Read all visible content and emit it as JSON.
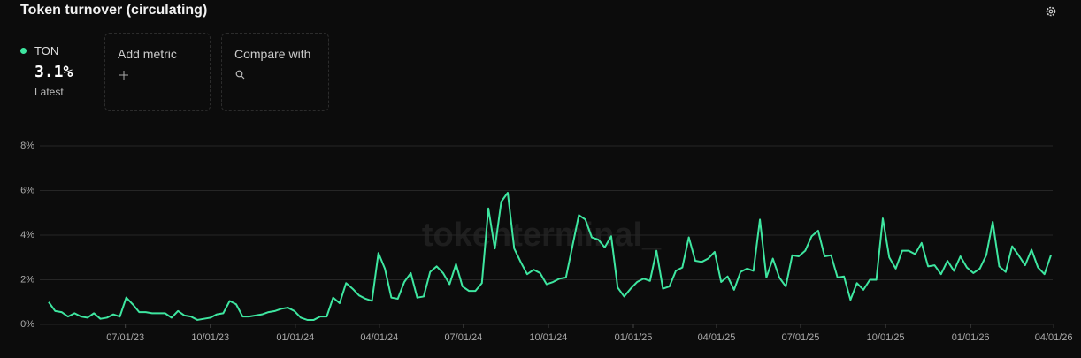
{
  "chart_data": {
    "type": "line",
    "title": "Token turnover (circulating)",
    "latest": {
      "label": "3.1%",
      "caption": "Latest"
    },
    "controls": [
      "Add metric",
      "Compare with"
    ],
    "watermark": "tokenterminal_",
    "x": [
      "2023-04-09",
      "2023-04-16",
      "2023-04-23",
      "2023-04-30",
      "2023-05-07",
      "2023-05-14",
      "2023-05-21",
      "2023-05-28",
      "2023-06-04",
      "2023-06-11",
      "2023-06-18",
      "2023-06-25",
      "2023-07-02",
      "2023-07-09",
      "2023-07-16",
      "2023-07-23",
      "2023-07-30",
      "2023-08-06",
      "2023-08-13",
      "2023-08-20",
      "2023-08-27",
      "2023-09-03",
      "2023-09-10",
      "2023-09-17",
      "2023-09-24",
      "2023-10-01",
      "2023-10-08",
      "2023-10-15",
      "2023-10-22",
      "2023-10-29",
      "2023-11-05",
      "2023-11-12",
      "2023-11-19",
      "2023-11-26",
      "2023-12-03",
      "2023-12-10",
      "2023-12-17",
      "2023-12-24",
      "2023-12-31",
      "2024-01-07",
      "2024-01-14",
      "2024-01-21",
      "2024-01-28",
      "2024-02-04",
      "2024-02-11",
      "2024-02-18",
      "2024-02-25",
      "2024-03-03",
      "2024-03-10",
      "2024-03-17",
      "2024-03-24",
      "2024-03-31",
      "2024-04-07",
      "2024-04-14",
      "2024-04-21",
      "2024-04-28",
      "2024-05-05",
      "2024-05-12",
      "2024-05-19",
      "2024-05-26",
      "2024-06-02",
      "2024-06-09",
      "2024-06-16",
      "2024-06-23",
      "2024-06-30",
      "2024-07-07",
      "2024-07-14",
      "2024-07-21",
      "2024-07-28",
      "2024-08-04",
      "2024-08-11",
      "2024-08-18",
      "2024-08-25",
      "2024-09-01",
      "2024-09-08",
      "2024-09-15",
      "2024-09-22",
      "2024-09-29",
      "2024-10-06",
      "2024-10-13",
      "2024-10-20",
      "2024-10-27",
      "2024-11-03",
      "2024-11-10",
      "2024-11-17",
      "2024-11-24",
      "2024-12-01",
      "2024-12-08",
      "2024-12-15",
      "2024-12-22",
      "2024-12-29",
      "2025-01-05",
      "2025-01-12",
      "2025-01-19",
      "2025-01-26",
      "2025-02-02",
      "2025-02-09",
      "2025-02-16",
      "2025-02-23",
      "2025-03-02",
      "2025-03-09",
      "2025-03-16",
      "2025-03-23",
      "2025-03-30",
      "2025-04-06",
      "2025-04-13",
      "2025-04-20",
      "2025-04-27",
      "2025-05-04",
      "2025-05-11",
      "2025-05-18",
      "2025-05-25",
      "2025-06-01",
      "2025-06-08",
      "2025-06-15",
      "2025-06-22",
      "2025-06-29",
      "2025-07-06",
      "2025-07-13",
      "2025-07-20",
      "2025-07-27",
      "2025-08-03",
      "2025-08-10",
      "2025-08-17",
      "2025-08-24",
      "2025-08-31",
      "2025-09-07",
      "2025-09-14",
      "2025-09-21",
      "2025-09-28",
      "2025-10-05",
      "2025-10-12",
      "2025-10-19",
      "2025-10-26",
      "2025-11-02",
      "2025-11-09",
      "2025-11-16",
      "2025-11-23",
      "2025-11-30",
      "2025-12-07",
      "2025-12-14",
      "2025-12-21",
      "2025-12-28",
      "2026-01-04",
      "2026-01-11",
      "2026-01-18",
      "2026-01-25",
      "2026-02-01",
      "2026-02-08",
      "2026-02-15",
      "2026-02-22",
      "2026-03-01",
      "2026-03-08",
      "2026-03-15",
      "2026-03-22",
      "2026-03-29"
    ],
    "series": [
      {
        "name": "TON",
        "color": "#3ee6a0",
        "values": [
          1.0,
          0.6,
          0.55,
          0.35,
          0.5,
          0.35,
          0.3,
          0.5,
          0.25,
          0.3,
          0.45,
          0.35,
          1.2,
          0.9,
          0.55,
          0.55,
          0.5,
          0.5,
          0.5,
          0.3,
          0.6,
          0.4,
          0.35,
          0.2,
          0.25,
          0.3,
          0.45,
          0.5,
          1.05,
          0.9,
          0.35,
          0.35,
          0.4,
          0.45,
          0.55,
          0.6,
          0.7,
          0.75,
          0.6,
          0.3,
          0.2,
          0.2,
          0.35,
          0.35,
          1.2,
          0.95,
          1.85,
          1.6,
          1.3,
          1.15,
          1.05,
          3.2,
          2.5,
          1.2,
          1.15,
          1.9,
          2.3,
          1.2,
          1.25,
          2.35,
          2.6,
          2.3,
          1.8,
          2.7,
          1.7,
          1.5,
          1.5,
          1.85,
          5.2,
          3.4,
          5.5,
          5.9,
          3.4,
          2.8,
          2.25,
          2.45,
          2.3,
          1.8,
          1.9,
          2.05,
          2.1,
          3.5,
          4.9,
          4.7,
          3.9,
          3.8,
          3.45,
          3.95,
          1.65,
          1.25,
          1.6,
          1.9,
          2.05,
          1.95,
          3.3,
          1.6,
          1.7,
          2.4,
          2.55,
          3.9,
          2.85,
          2.8,
          2.95,
          3.25,
          1.9,
          2.15,
          1.55,
          2.35,
          2.5,
          2.4,
          4.7,
          2.1,
          2.95,
          2.1,
          1.7,
          3.1,
          3.05,
          3.3,
          3.95,
          4.2,
          3.05,
          3.1,
          2.1,
          2.15,
          1.1,
          1.85,
          1.55,
          2.0,
          2.0,
          4.75,
          3.0,
          2.5,
          3.3,
          3.3,
          3.15,
          3.65,
          2.6,
          2.65,
          2.25,
          2.85,
          2.4,
          3.05,
          2.55,
          2.3,
          2.5,
          3.1,
          4.6,
          2.6,
          2.35,
          3.5,
          3.1,
          2.65,
          3.35,
          2.55,
          2.25,
          3.1
        ]
      }
    ],
    "xlim": [
      "2023-04-09",
      "2026-03-29"
    ],
    "xticks": [
      {
        "value": "2023-07-01",
        "label": "07/01/23"
      },
      {
        "value": "2023-10-01",
        "label": "10/01/23"
      },
      {
        "value": "2024-01-01",
        "label": "01/01/24"
      },
      {
        "value": "2024-04-01",
        "label": "04/01/24"
      },
      {
        "value": "2024-07-01",
        "label": "07/01/24"
      },
      {
        "value": "2024-10-01",
        "label": "10/01/24"
      },
      {
        "value": "2025-01-01",
        "label": "01/01/25"
      },
      {
        "value": "2025-04-01",
        "label": "04/01/25"
      },
      {
        "value": "2025-07-01",
        "label": "07/01/25"
      },
      {
        "value": "2025-10-01",
        "label": "10/01/25"
      },
      {
        "value": "2026-01-01",
        "label": "01/01/26"
      },
      {
        "value": "2026-04-01",
        "label": "04/01/26"
      }
    ],
    "ylim": [
      0,
      8
    ],
    "yticks": [
      {
        "value": 0,
        "label": "0%"
      },
      {
        "value": 2,
        "label": "2%"
      },
      {
        "value": 4,
        "label": "4%"
      },
      {
        "value": 6,
        "label": "6%"
      },
      {
        "value": 8,
        "label": "8%"
      }
    ],
    "grid": true
  }
}
